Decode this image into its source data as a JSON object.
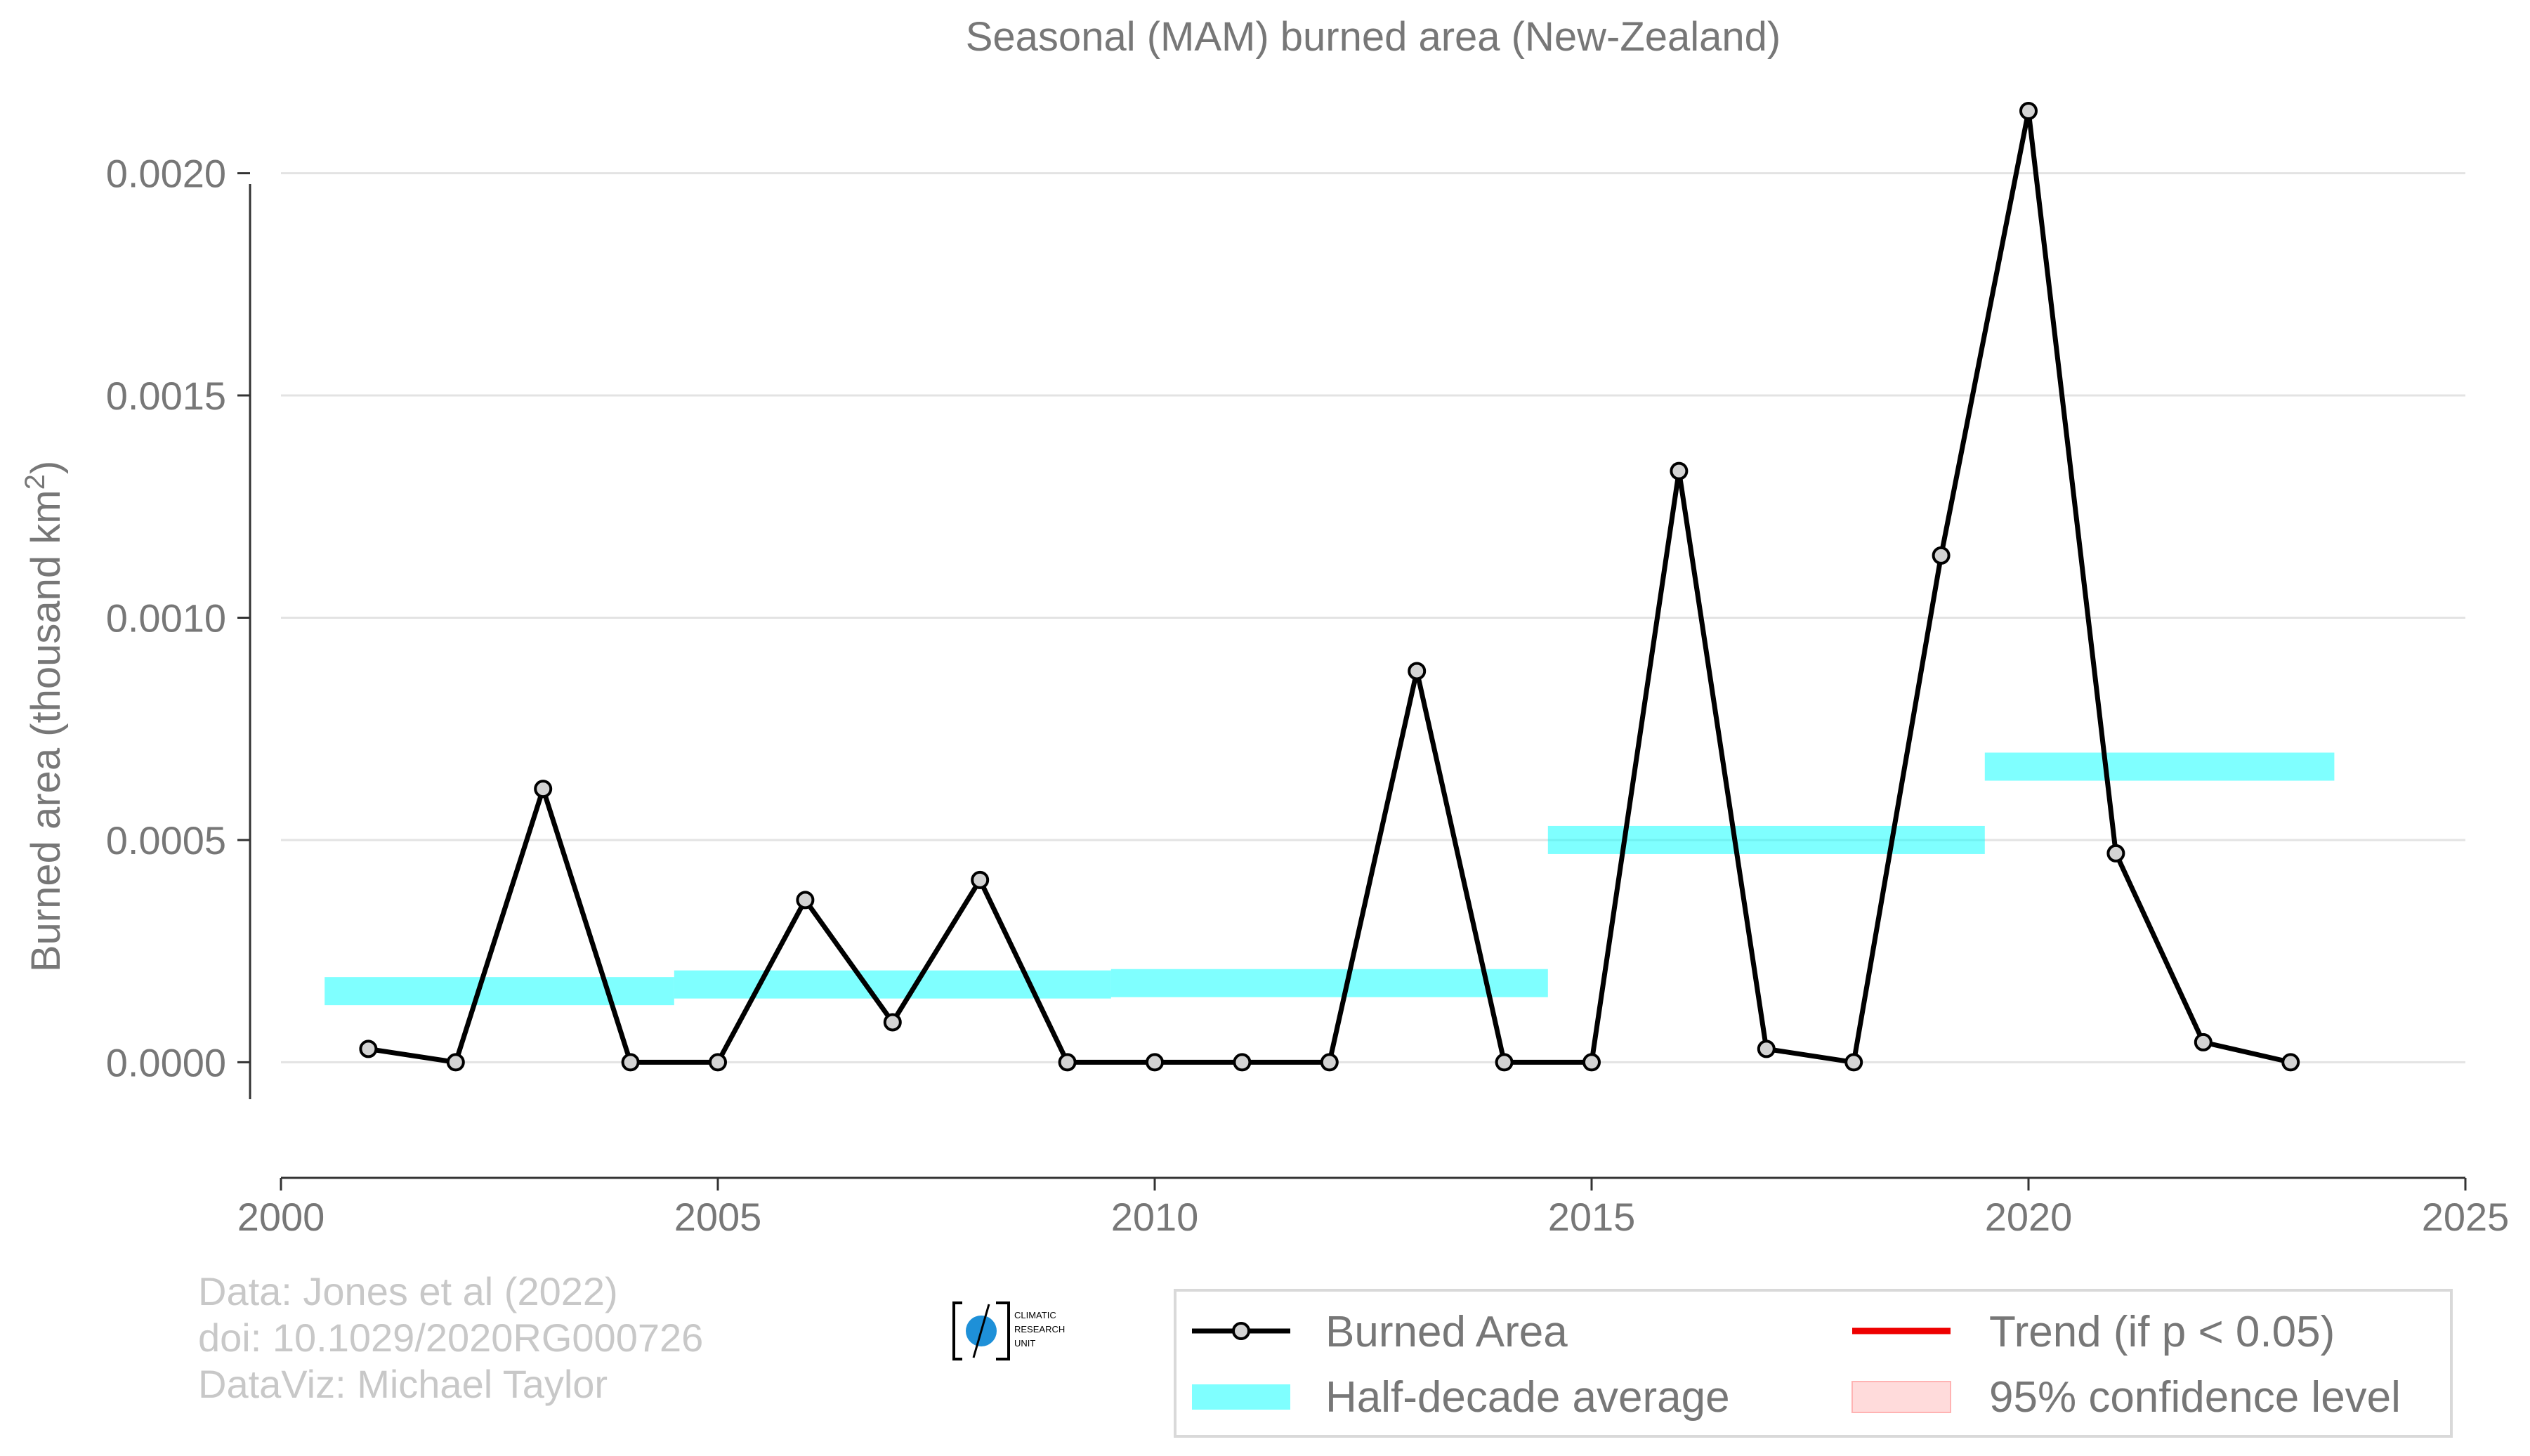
{
  "chart_data": {
    "type": "line",
    "title": "Seasonal (MAM) burned area (New-Zealand)",
    "xlabel": "",
    "ylabel": "Burned area (thousand km",
    "ylabel_superscript": "2",
    "ylabel_close": ")",
    "xlim": [
      2000,
      2025
    ],
    "ylim": [
      -0.00017,
      0.0022
    ],
    "x_ticks": [
      2000,
      2005,
      2010,
      2015,
      2020,
      2025
    ],
    "y_ticks": [
      0.0,
      0.0005,
      0.001,
      0.0015,
      0.002
    ],
    "y_tick_labels": [
      "0.0000",
      "0.0005",
      "0.0010",
      "0.0015",
      "0.0020"
    ],
    "grid": "horizontal",
    "series": [
      {
        "name": "Burned Area",
        "color": "#000000",
        "marker_fill": "#d3d3d3",
        "x": [
          2001,
          2002,
          2003,
          2004,
          2005,
          2006,
          2007,
          2008,
          2009,
          2010,
          2011,
          2012,
          2013,
          2014,
          2015,
          2016,
          2017,
          2018,
          2019,
          2020,
          2021,
          2022,
          2023
        ],
        "y": [
          3e-05,
          0.0,
          0.000615,
          0.0,
          0.0,
          0.000365,
          9e-05,
          0.00041,
          0.0,
          0.0,
          0.0,
          0.0,
          0.00088,
          0.0,
          0.0,
          0.00133,
          3e-05,
          0.0,
          0.00114,
          0.00214,
          0.00047,
          4.5e-05,
          0.0
        ]
      }
    ],
    "half_decade_average": {
      "name": "Half-decade average",
      "color": "#00ffff",
      "segments": [
        {
          "x_start": 2000.5,
          "x_end": 2004.5,
          "y": 0.00016
        },
        {
          "x_start": 2004.5,
          "x_end": 2009.5,
          "y": 0.000175
        },
        {
          "x_start": 2009.5,
          "x_end": 2014.5,
          "y": 0.000178
        },
        {
          "x_start": 2014.5,
          "x_end": 2019.5,
          "y": 0.0005
        },
        {
          "x_start": 2019.5,
          "x_end": 2023.5,
          "y": 0.000665
        }
      ]
    },
    "legend": {
      "placement": "bottom-right",
      "items": [
        {
          "label": "Burned Area",
          "kind": "line-marker",
          "color": "#000000"
        },
        {
          "label": "Trend (if p < 0.05)",
          "kind": "line",
          "color": "#ee0000"
        },
        {
          "label": "Half-decade average",
          "kind": "band",
          "color": "#00ffff"
        },
        {
          "label": "95% confidence level",
          "kind": "fill",
          "color": "#ffcccc"
        }
      ]
    }
  },
  "credits": {
    "line1": "Data: Jones et al (2022)",
    "line2": "doi: 10.1029/2020RG000726",
    "line3": "DataViz: Michael Taylor"
  },
  "logo": {
    "line1": "CLIMATIC",
    "line2": "RESEARCH",
    "line3": "UNIT",
    "accent": "#1e90d8"
  }
}
